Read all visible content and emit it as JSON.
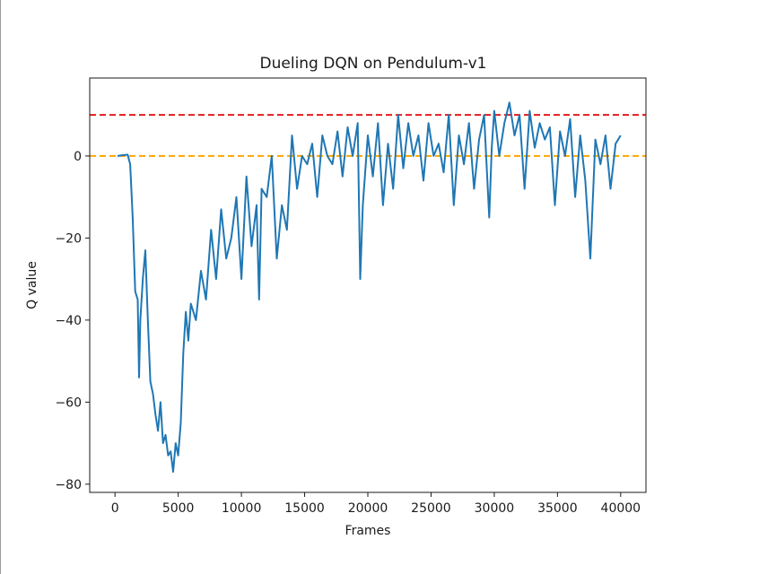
{
  "chart_data": {
    "type": "line",
    "title": "Dueling DQN on Pendulum-v1",
    "xlabel": "Frames",
    "ylabel": "Q value",
    "xlim": [
      -2000,
      42000
    ],
    "ylim": [
      -82,
      19
    ],
    "xticks": [
      0,
      5000,
      10000,
      15000,
      20000,
      25000,
      30000,
      35000,
      40000
    ],
    "yticks": [
      -80,
      -60,
      -40,
      -20,
      0
    ],
    "grid": false,
    "legend": "none",
    "reference_lines": [
      {
        "y": 10,
        "color": "#e31a1c",
        "style": "dashed"
      },
      {
        "y": 0,
        "color": "#ffa500",
        "style": "dashed"
      }
    ],
    "series": [
      {
        "color": "#1f77b4",
        "x": [
          200,
          600,
          1000,
          1200,
          1400,
          1600,
          1800,
          1900,
          2000,
          2200,
          2400,
          2600,
          2800,
          3000,
          3200,
          3400,
          3600,
          3800,
          4000,
          4200,
          4400,
          4600,
          4800,
          5000,
          5200,
          5400,
          5600,
          5800,
          6000,
          6400,
          6800,
          7200,
          7600,
          8000,
          8400,
          8800,
          9200,
          9600,
          10000,
          10400,
          10800,
          11200,
          11400,
          11600,
          12000,
          12400,
          12800,
          13200,
          13600,
          14000,
          14400,
          14800,
          15200,
          15600,
          16000,
          16400,
          16800,
          17200,
          17600,
          18000,
          18400,
          18800,
          19200,
          19400,
          19600,
          20000,
          20400,
          20800,
          21200,
          21600,
          22000,
          22400,
          22800,
          23200,
          23600,
          24000,
          24400,
          24800,
          25200,
          25600,
          26000,
          26400,
          26800,
          27200,
          27600,
          28000,
          28400,
          28800,
          29200,
          29600,
          29800,
          30000,
          30400,
          30800,
          31200,
          31600,
          32000,
          32400,
          32800,
          33200,
          33600,
          34000,
          34400,
          34800,
          35200,
          35600,
          36000,
          36400,
          36800,
          37200,
          37600,
          38000,
          38400,
          38800,
          39200,
          39600,
          40000
        ],
        "values": [
          0.0,
          0.2,
          0.3,
          -2,
          -15,
          -33,
          -35,
          -54,
          -40,
          -30,
          -23,
          -40,
          -55,
          -58,
          -63,
          -67,
          -60,
          -70,
          -68,
          -73,
          -72,
          -77,
          -70,
          -73,
          -65,
          -48,
          -38,
          -45,
          -36,
          -40,
          -28,
          -35,
          -18,
          -30,
          -13,
          -25,
          -20,
          -10,
          -30,
          -5,
          -22,
          -12,
          -35,
          -8,
          -10,
          0,
          -25,
          -12,
          -18,
          5,
          -8,
          0,
          -2,
          3,
          -10,
          5,
          0,
          -2,
          6,
          -5,
          7,
          0,
          8,
          -30,
          -12,
          5,
          -5,
          8,
          -12,
          3,
          -8,
          10,
          -3,
          8,
          0,
          5,
          -6,
          8,
          0,
          3,
          -4,
          10,
          -12,
          5,
          -2,
          8,
          -8,
          4,
          10,
          -15,
          2,
          11,
          0,
          8,
          13,
          5,
          10,
          -8,
          11,
          2,
          8,
          4,
          7,
          -12,
          6,
          0,
          9,
          -10,
          5,
          -6,
          -25,
          4,
          -2,
          5,
          -8,
          3,
          5
        ]
      }
    ]
  }
}
